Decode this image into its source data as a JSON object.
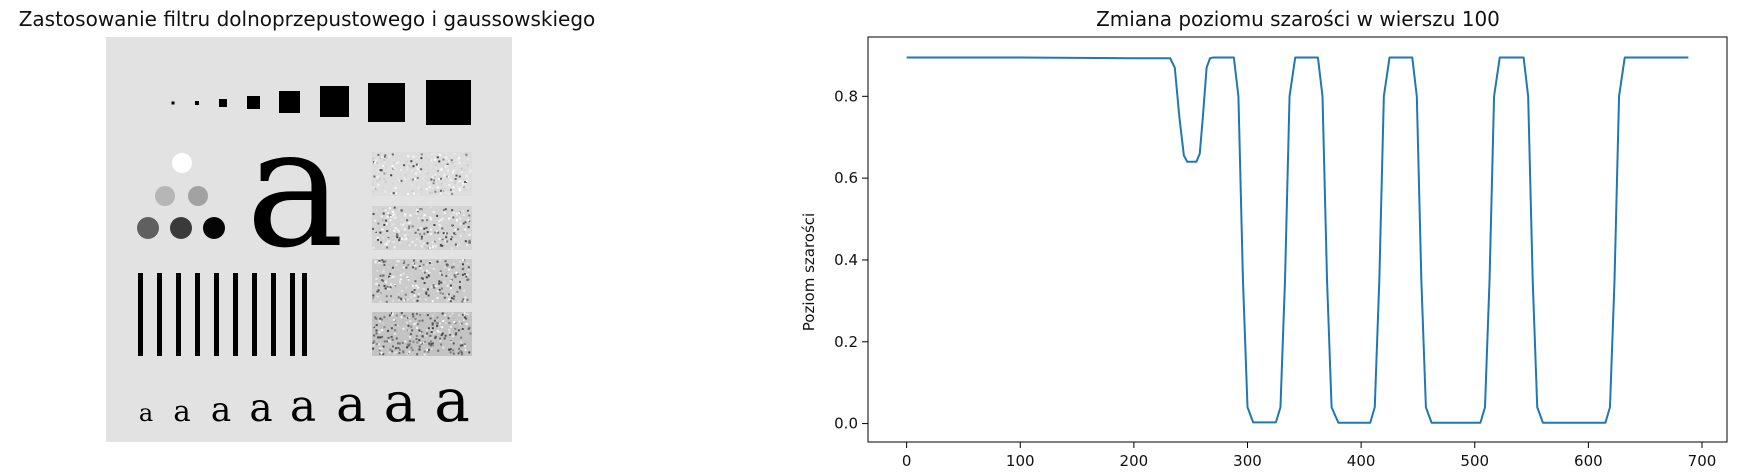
{
  "figure": {
    "left_title": "Zastosowanie filtru dolnoprzepustowego i gaussowskiego",
    "right_title": "Zmiana poziomu szarości w wierszu 100"
  },
  "test_image": {
    "description_items": [
      "squares",
      "circles",
      "letter-a",
      "noise-rectangles",
      "vertical-bars",
      "letter-row"
    ],
    "background_gray": "#e2e2e2"
  },
  "chart_data": {
    "type": "line",
    "title": "Zmiana poziomu szarości w wierszu 100",
    "xlabel": "",
    "ylabel": "Poziom szarości",
    "xlim": [
      -34,
      722
    ],
    "ylim": [
      -0.045,
      0.945
    ],
    "xticks": [
      0,
      100,
      200,
      300,
      400,
      500,
      600,
      700
    ],
    "yticks": [
      0.0,
      0.2,
      0.4,
      0.6,
      0.8
    ],
    "grid": false,
    "series": [
      {
        "color": "#1f77b4",
        "x": [
          0,
          100,
          200,
          232,
          236,
          240,
          244,
          247,
          250,
          255,
          258,
          261,
          264,
          267,
          270,
          288,
          292,
          296,
          300,
          305,
          325,
          329,
          333,
          337,
          342,
          362,
          366,
          370,
          374,
          380,
          408,
          412,
          416,
          420,
          425,
          445,
          449,
          453,
          457,
          462,
          505,
          509,
          513,
          517,
          522,
          543,
          547,
          551,
          555,
          560,
          615,
          619,
          623,
          627,
          632,
          688
        ],
        "y": [
          0.895,
          0.895,
          0.893,
          0.893,
          0.87,
          0.75,
          0.655,
          0.64,
          0.64,
          0.64,
          0.66,
          0.76,
          0.87,
          0.893,
          0.895,
          0.895,
          0.8,
          0.35,
          0.04,
          0.003,
          0.003,
          0.04,
          0.35,
          0.8,
          0.895,
          0.895,
          0.8,
          0.35,
          0.04,
          0.002,
          0.002,
          0.04,
          0.35,
          0.8,
          0.895,
          0.895,
          0.8,
          0.35,
          0.04,
          0.002,
          0.002,
          0.04,
          0.35,
          0.8,
          0.895,
          0.895,
          0.8,
          0.35,
          0.04,
          0.002,
          0.002,
          0.04,
          0.35,
          0.8,
          0.895,
          0.895
        ]
      }
    ]
  }
}
